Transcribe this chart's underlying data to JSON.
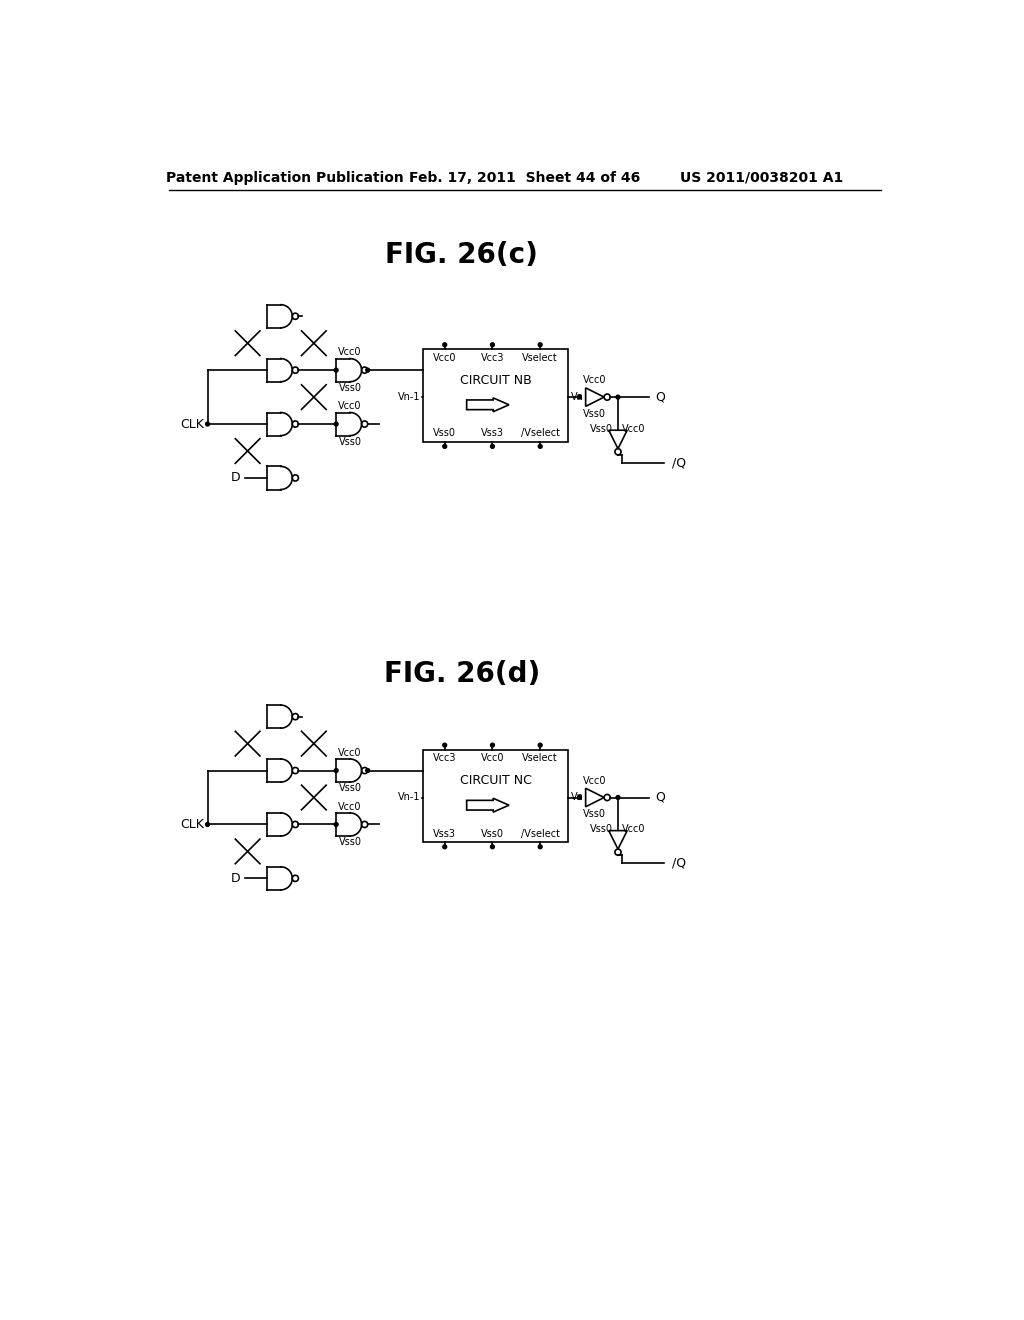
{
  "header_left": "Patent Application Publication",
  "header_mid": "Feb. 17, 2011  Sheet 44 of 46",
  "header_right": "US 2011/0038201 A1",
  "fig_c_title": "FIG. 26(c)",
  "fig_d_title": "FIG. 26(d)",
  "circuit_nb": "CIRCUIT NB",
  "circuit_nc": "CIRCUIT NC",
  "bg_color": "#ffffff",
  "line_color": "#000000"
}
